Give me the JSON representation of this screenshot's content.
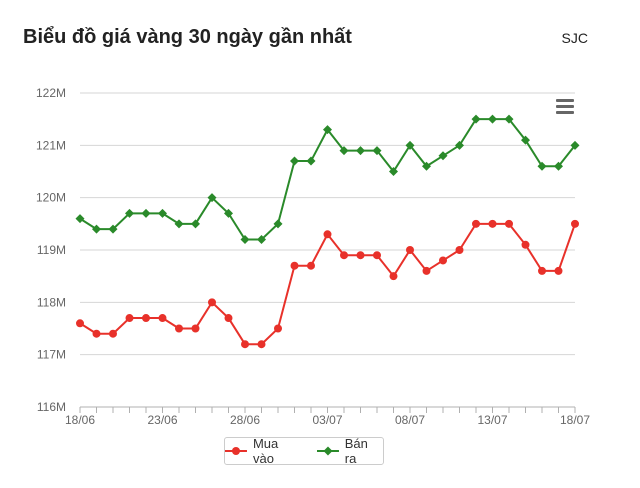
{
  "header": {
    "title": "Biểu đồ giá vàng 30 ngày gần nhất",
    "source": "SJC"
  },
  "menu": {
    "icon": "hamburger-menu-icon"
  },
  "chart_data": {
    "type": "line",
    "title": "Biểu đồ giá vàng 30 ngày gần nhất",
    "xlabel": "",
    "ylabel": "",
    "ylim": [
      116,
      122
    ],
    "y_ticks": [
      "116M",
      "117M",
      "118M",
      "119M",
      "120M",
      "121M",
      "122M"
    ],
    "x_tick_labels": [
      "18/06",
      "23/06",
      "28/06",
      "03/07",
      "08/07",
      "13/07",
      "18/07"
    ],
    "grid": true,
    "legend_position": "bottom-center",
    "series": [
      {
        "name": "Mua vào",
        "color": "#e8312a",
        "marker": "circle",
        "values": [
          117.6,
          117.4,
          117.4,
          117.7,
          117.7,
          117.7,
          117.5,
          117.5,
          118.0,
          117.7,
          117.2,
          117.2,
          117.5,
          118.7,
          118.7,
          119.3,
          118.9,
          118.9,
          118.9,
          118.5,
          119.0,
          118.6,
          118.8,
          119.0,
          119.5,
          119.5,
          119.5,
          119.1,
          118.6,
          118.6,
          119.5
        ]
      },
      {
        "name": "Bán ra",
        "color": "#2a8a2a",
        "marker": "diamond",
        "values": [
          119.6,
          119.4,
          119.4,
          119.7,
          119.7,
          119.7,
          119.5,
          119.5,
          120.0,
          119.7,
          119.2,
          119.2,
          119.5,
          120.7,
          120.7,
          121.3,
          120.9,
          120.9,
          120.9,
          120.5,
          121.0,
          120.6,
          120.8,
          121.0,
          121.5,
          121.5,
          121.5,
          121.1,
          120.6,
          120.6,
          121.0
        ]
      }
    ]
  }
}
